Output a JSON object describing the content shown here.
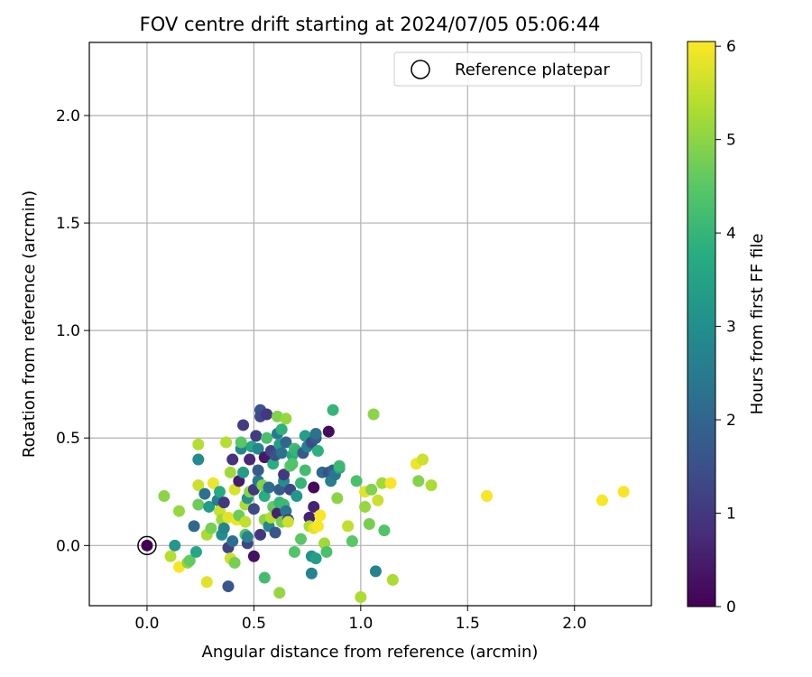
{
  "chart_data": {
    "type": "scatter",
    "title": "FOV centre drift starting at 2024/07/05 05:06:44",
    "xlabel": "Angular distance from reference (arcmin)",
    "ylabel": "Rotation from reference (arcmin)",
    "xlim": [
      -0.27,
      2.36
    ],
    "ylim": [
      -0.28,
      2.34
    ],
    "xticks": [
      0.0,
      0.5,
      1.0,
      1.5,
      2.0
    ],
    "xtick_labels": [
      "0.0",
      "0.5",
      "1.0",
      "1.5",
      "2.0"
    ],
    "yticks": [
      0.0,
      0.5,
      1.0,
      1.5,
      2.0
    ],
    "ytick_labels": [
      "0.0",
      "0.5",
      "1.0",
      "1.5",
      "2.0"
    ],
    "grid": true,
    "legend": {
      "placement": "top-right",
      "entries": [
        "Reference platepar"
      ]
    },
    "colorbar": {
      "label": "Hours from first FF file",
      "min": 0,
      "max": 6.05,
      "ticks": [
        0,
        1,
        2,
        3,
        4,
        5,
        6
      ],
      "tick_labels": [
        "0",
        "1",
        "2",
        "3",
        "4",
        "5",
        "6"
      ],
      "colormap": "viridis"
    },
    "reference_point": {
      "x": 0.0,
      "y": 0.0
    },
    "points": [
      {
        "x": 0.0,
        "y": 0.0,
        "c": 0.0
      },
      {
        "x": 0.08,
        "y": 0.23,
        "c": 5.0
      },
      {
        "x": 0.11,
        "y": -0.05,
        "c": 5.4
      },
      {
        "x": 0.13,
        "y": 0.0,
        "c": 3.2
      },
      {
        "x": 0.15,
        "y": -0.1,
        "c": 6.0
      },
      {
        "x": 0.15,
        "y": 0.16,
        "c": 5.1
      },
      {
        "x": 0.19,
        "y": -0.08,
        "c": 5.0
      },
      {
        "x": 0.2,
        "y": -0.07,
        "c": 4.6
      },
      {
        "x": 0.22,
        "y": 0.09,
        "c": 2.1
      },
      {
        "x": 0.23,
        "y": -0.03,
        "c": 3.6
      },
      {
        "x": 0.24,
        "y": 0.19,
        "c": 4.7
      },
      {
        "x": 0.24,
        "y": 0.4,
        "c": 2.9
      },
      {
        "x": 0.24,
        "y": 0.47,
        "c": 5.4
      },
      {
        "x": 0.24,
        "y": 0.28,
        "c": 5.6
      },
      {
        "x": 0.27,
        "y": 0.24,
        "c": 2.3
      },
      {
        "x": 0.28,
        "y": 0.05,
        "c": 5.3
      },
      {
        "x": 0.28,
        "y": -0.17,
        "c": 5.8
      },
      {
        "x": 0.29,
        "y": 0.18,
        "c": 3.3
      },
      {
        "x": 0.3,
        "y": 0.08,
        "c": 4.8
      },
      {
        "x": 0.31,
        "y": 0.29,
        "c": 5.9
      },
      {
        "x": 0.33,
        "y": 0.21,
        "c": 2.6
      },
      {
        "x": 0.34,
        "y": 0.25,
        "c": 3.7
      },
      {
        "x": 0.34,
        "y": 0.16,
        "c": 5.6
      },
      {
        "x": 0.35,
        "y": 0.12,
        "c": 5.2
      },
      {
        "x": 0.35,
        "y": 0.05,
        "c": 3.0
      },
      {
        "x": 0.36,
        "y": 0.08,
        "c": 2.7
      },
      {
        "x": 0.36,
        "y": 0.2,
        "c": 1.0
      },
      {
        "x": 0.37,
        "y": 0.48,
        "c": 5.4
      },
      {
        "x": 0.38,
        "y": -0.01,
        "c": 1.2
      },
      {
        "x": 0.38,
        "y": 0.13,
        "c": 5.8
      },
      {
        "x": 0.38,
        "y": -0.19,
        "c": 1.6
      },
      {
        "x": 0.39,
        "y": -0.06,
        "c": 5.6
      },
      {
        "x": 0.39,
        "y": 0.34,
        "c": 5.2
      },
      {
        "x": 0.4,
        "y": 0.4,
        "c": 0.9
      },
      {
        "x": 0.4,
        "y": 0.02,
        "c": 2.2
      },
      {
        "x": 0.41,
        "y": -0.08,
        "c": 4.8
      },
      {
        "x": 0.41,
        "y": 0.26,
        "c": 5.7
      },
      {
        "x": 0.42,
        "y": 0.12,
        "c": 5.9
      },
      {
        "x": 0.43,
        "y": 0.14,
        "c": 4.7
      },
      {
        "x": 0.43,
        "y": 0.3,
        "c": 0.5
      },
      {
        "x": 0.44,
        "y": 0.45,
        "c": 2.8
      },
      {
        "x": 0.44,
        "y": 0.48,
        "c": 4.5
      },
      {
        "x": 0.45,
        "y": 0.56,
        "c": 1.1
      },
      {
        "x": 0.45,
        "y": 0.34,
        "c": 3.4
      },
      {
        "x": 0.46,
        "y": 0.11,
        "c": 5.5
      },
      {
        "x": 0.46,
        "y": 0.05,
        "c": 4.4
      },
      {
        "x": 0.46,
        "y": 0.19,
        "c": 5.3
      },
      {
        "x": 0.47,
        "y": 0.01,
        "c": 1.3
      },
      {
        "x": 0.47,
        "y": 0.04,
        "c": 2.7
      },
      {
        "x": 0.47,
        "y": 0.22,
        "c": 3.1
      },
      {
        "x": 0.48,
        "y": 0.4,
        "c": 0.7
      },
      {
        "x": 0.48,
        "y": 0.25,
        "c": 5.0
      },
      {
        "x": 0.49,
        "y": 0.46,
        "c": 3.6
      },
      {
        "x": 0.5,
        "y": 0.17,
        "c": 1.4
      },
      {
        "x": 0.5,
        "y": 0.26,
        "c": 1.0
      },
      {
        "x": 0.5,
        "y": -0.05,
        "c": 0.3
      },
      {
        "x": 0.51,
        "y": 0.51,
        "c": 1.1
      },
      {
        "x": 0.52,
        "y": 0.45,
        "c": 2.8
      },
      {
        "x": 0.52,
        "y": 0.3,
        "c": 2.5
      },
      {
        "x": 0.52,
        "y": 0.35,
        "c": 1.8
      },
      {
        "x": 0.53,
        "y": 0.63,
        "c": 1.6
      },
      {
        "x": 0.53,
        "y": 0.6,
        "c": 1.4
      },
      {
        "x": 0.53,
        "y": 0.05,
        "c": 1.0
      },
      {
        "x": 0.54,
        "y": 0.28,
        "c": 4.9
      },
      {
        "x": 0.55,
        "y": 0.23,
        "c": 3.8
      },
      {
        "x": 0.55,
        "y": 0.41,
        "c": 0.4
      },
      {
        "x": 0.55,
        "y": 0.12,
        "c": 5.0
      },
      {
        "x": 0.55,
        "y": -0.15,
        "c": 4.2
      },
      {
        "x": 0.56,
        "y": 0.61,
        "c": 1.0
      },
      {
        "x": 0.56,
        "y": 0.5,
        "c": 4.3
      },
      {
        "x": 0.57,
        "y": 0.27,
        "c": 2.2
      },
      {
        "x": 0.57,
        "y": 0.09,
        "c": 2.8
      },
      {
        "x": 0.58,
        "y": 0.13,
        "c": 5.4
      },
      {
        "x": 0.58,
        "y": 0.44,
        "c": 1.2
      },
      {
        "x": 0.59,
        "y": 0.18,
        "c": 4.6
      },
      {
        "x": 0.59,
        "y": 0.38,
        "c": 3.8
      },
      {
        "x": 0.6,
        "y": 0.42,
        "c": 1.5
      },
      {
        "x": 0.6,
        "y": 0.06,
        "c": 1.6
      },
      {
        "x": 0.61,
        "y": 0.52,
        "c": 2.5
      },
      {
        "x": 0.61,
        "y": 0.6,
        "c": 4.9
      },
      {
        "x": 0.61,
        "y": 0.15,
        "c": 0.6
      },
      {
        "x": 0.62,
        "y": 0.26,
        "c": 1.8
      },
      {
        "x": 0.62,
        "y": 0.2,
        "c": 4.0
      },
      {
        "x": 0.62,
        "y": 0.47,
        "c": 3.4
      },
      {
        "x": 0.62,
        "y": -0.22,
        "c": 5.1
      },
      {
        "x": 0.63,
        "y": 0.11,
        "c": 4.8
      },
      {
        "x": 0.63,
        "y": 0.54,
        "c": 3.9
      },
      {
        "x": 0.63,
        "y": 0.43,
        "c": 2.3
      },
      {
        "x": 0.64,
        "y": 0.3,
        "c": 3.0
      },
      {
        "x": 0.64,
        "y": 0.33,
        "c": 1.0
      },
      {
        "x": 0.64,
        "y": 0.19,
        "c": 4.1
      },
      {
        "x": 0.65,
        "y": 0.59,
        "c": 5.1
      },
      {
        "x": 0.65,
        "y": 0.16,
        "c": 2.4
      },
      {
        "x": 0.65,
        "y": 0.48,
        "c": 2.0
      },
      {
        "x": 0.66,
        "y": 0.12,
        "c": 1.2
      },
      {
        "x": 0.66,
        "y": 0.11,
        "c": 5.6
      },
      {
        "x": 0.67,
        "y": 0.37,
        "c": 4.5
      },
      {
        "x": 0.67,
        "y": 0.26,
        "c": 1.3
      },
      {
        "x": 0.68,
        "y": 0.42,
        "c": 3.7
      },
      {
        "x": 0.68,
        "y": 0.38,
        "c": 4.4
      },
      {
        "x": 0.69,
        "y": 0.45,
        "c": 4.2
      },
      {
        "x": 0.69,
        "y": -0.03,
        "c": 4.4
      },
      {
        "x": 0.7,
        "y": 0.23,
        "c": 3.2
      },
      {
        "x": 0.7,
        "y": 0.44,
        "c": 4.0
      },
      {
        "x": 0.72,
        "y": 0.29,
        "c": 4.0
      },
      {
        "x": 0.72,
        "y": 0.03,
        "c": 4.5
      },
      {
        "x": 0.73,
        "y": 0.43,
        "c": 1.7
      },
      {
        "x": 0.74,
        "y": 0.51,
        "c": 3.4
      },
      {
        "x": 0.74,
        "y": 0.35,
        "c": 4.2
      },
      {
        "x": 0.75,
        "y": 0.46,
        "c": 2.6
      },
      {
        "x": 0.76,
        "y": 0.13,
        "c": 0.6
      },
      {
        "x": 0.76,
        "y": 0.09,
        "c": 5.3
      },
      {
        "x": 0.77,
        "y": 0.48,
        "c": 1.4
      },
      {
        "x": 0.77,
        "y": -0.13,
        "c": 2.7
      },
      {
        "x": 0.77,
        "y": -0.05,
        "c": 3.1
      },
      {
        "x": 0.78,
        "y": 0.18,
        "c": 0.6
      },
      {
        "x": 0.78,
        "y": 0.27,
        "c": 0.1
      },
      {
        "x": 0.78,
        "y": 0.08,
        "c": 5.8
      },
      {
        "x": 0.79,
        "y": 0.5,
        "c": 1.8
      },
      {
        "x": 0.79,
        "y": 0.52,
        "c": 2.3
      },
      {
        "x": 0.79,
        "y": -0.06,
        "c": 3.4
      },
      {
        "x": 0.8,
        "y": 0.44,
        "c": 3.9
      },
      {
        "x": 0.8,
        "y": 0.09,
        "c": 6.0
      },
      {
        "x": 0.81,
        "y": 0.14,
        "c": 6.0
      },
      {
        "x": 0.82,
        "y": 0.34,
        "c": 2.1
      },
      {
        "x": 0.83,
        "y": 0.01,
        "c": 5.2
      },
      {
        "x": 0.84,
        "y": -0.03,
        "c": 4.3
      },
      {
        "x": 0.85,
        "y": 0.53,
        "c": 0.2
      },
      {
        "x": 0.85,
        "y": 0.34,
        "c": 1.5
      },
      {
        "x": 0.86,
        "y": 0.3,
        "c": 2.6
      },
      {
        "x": 0.87,
        "y": 0.63,
        "c": 4.0
      },
      {
        "x": 0.87,
        "y": 0.35,
        "c": 1.9
      },
      {
        "x": 0.88,
        "y": 0.33,
        "c": 2.4
      },
      {
        "x": 0.89,
        "y": 0.22,
        "c": 5.0
      },
      {
        "x": 0.9,
        "y": 0.36,
        "c": 3.6
      },
      {
        "x": 0.9,
        "y": 0.37,
        "c": 4.1
      },
      {
        "x": 0.94,
        "y": 0.09,
        "c": 5.5
      },
      {
        "x": 0.96,
        "y": 0.02,
        "c": 4.5
      },
      {
        "x": 0.98,
        "y": 0.3,
        "c": 4.3
      },
      {
        "x": 1.0,
        "y": -0.24,
        "c": 5.3
      },
      {
        "x": 1.02,
        "y": 0.18,
        "c": 5.1
      },
      {
        "x": 1.02,
        "y": 0.25,
        "c": 5.8
      },
      {
        "x": 1.04,
        "y": 0.1,
        "c": 4.8
      },
      {
        "x": 1.05,
        "y": 0.26,
        "c": 4.9
      },
      {
        "x": 1.06,
        "y": 0.61,
        "c": 5.0
      },
      {
        "x": 1.07,
        "y": -0.12,
        "c": 2.7
      },
      {
        "x": 1.08,
        "y": 0.21,
        "c": 5.6
      },
      {
        "x": 1.1,
        "y": 0.29,
        "c": 5.2
      },
      {
        "x": 1.11,
        "y": 0.07,
        "c": 4.4
      },
      {
        "x": 1.14,
        "y": 0.29,
        "c": 6.0
      },
      {
        "x": 1.15,
        "y": -0.16,
        "c": 5.3
      },
      {
        "x": 1.26,
        "y": 0.38,
        "c": 5.9
      },
      {
        "x": 1.27,
        "y": 0.3,
        "c": 4.9
      },
      {
        "x": 1.29,
        "y": 0.4,
        "c": 5.6
      },
      {
        "x": 1.33,
        "y": 0.28,
        "c": 5.3
      },
      {
        "x": 1.59,
        "y": 0.23,
        "c": 6.0
      },
      {
        "x": 2.13,
        "y": 0.21,
        "c": 6.0
      },
      {
        "x": 2.23,
        "y": 0.25,
        "c": 6.0
      }
    ]
  }
}
